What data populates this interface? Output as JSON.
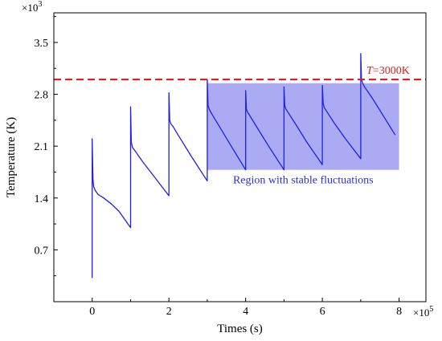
{
  "chart_data": {
    "type": "line",
    "xlabel": "Times (s)",
    "ylabel": "Temperature (K)",
    "x_multiplier": "×10",
    "x_multiplier_exp": "5",
    "y_multiplier": "×10",
    "y_multiplier_exp": "3",
    "xlim": [
      -1.0,
      8.7
    ],
    "ylim": [
      0.0,
      3.9
    ],
    "xticks": [
      0,
      2,
      4,
      6,
      8
    ],
    "xtick_labels": [
      "0",
      "2",
      "4",
      "6",
      "8"
    ],
    "yticks": [
      0.7,
      1.4,
      2.1,
      2.8,
      3.5
    ],
    "ytick_labels": [
      "0.7",
      "1.4",
      "2.1",
      "2.8",
      "3.5"
    ],
    "grid": false,
    "threshold": {
      "value": 3.0,
      "label_var": "T",
      "label_value": "=3000K",
      "color": "#e02020"
    },
    "region": {
      "label": "Region with stable fluctuations",
      "x": [
        3.0,
        8.0
      ],
      "y": [
        1.78,
        2.95
      ],
      "color": "#8f8fef",
      "text_color": "#2f2fd0"
    },
    "series": [
      {
        "color": "#1f1fe6",
        "x": [
          0.0,
          0.0,
          0.02,
          0.04,
          0.08,
          0.15,
          0.3,
          0.5,
          0.7,
          1.0,
          1.0,
          1.02,
          1.05,
          1.1,
          1.3,
          1.6,
          2.0,
          2.0,
          2.02,
          2.05,
          2.1,
          2.3,
          2.6,
          3.0,
          3.0,
          3.02,
          3.05,
          3.1,
          3.3,
          3.6,
          4.0,
          4.0,
          4.02,
          4.05,
          4.1,
          4.3,
          4.6,
          5.0,
          5.0,
          5.02,
          5.05,
          5.1,
          5.3,
          5.6,
          6.0,
          6.0,
          6.02,
          6.05,
          6.1,
          6.3,
          6.6,
          7.0,
          7.0,
          7.02,
          7.05,
          7.1,
          7.3,
          7.6,
          7.9
        ],
        "y": [
          0.32,
          2.2,
          1.65,
          1.55,
          1.5,
          1.45,
          1.4,
          1.32,
          1.22,
          1.0,
          2.63,
          2.15,
          2.08,
          2.05,
          1.9,
          1.7,
          1.43,
          2.82,
          2.45,
          2.4,
          2.37,
          2.2,
          1.95,
          1.63,
          3.0,
          2.65,
          2.6,
          2.55,
          2.38,
          2.12,
          1.78,
          2.85,
          2.6,
          2.56,
          2.52,
          2.35,
          2.1,
          1.78,
          2.9,
          2.65,
          2.6,
          2.56,
          2.4,
          2.15,
          1.85,
          2.92,
          2.68,
          2.62,
          2.58,
          2.42,
          2.2,
          1.93,
          3.35,
          3.0,
          2.95,
          2.9,
          2.75,
          2.5,
          2.25
        ]
      }
    ]
  }
}
